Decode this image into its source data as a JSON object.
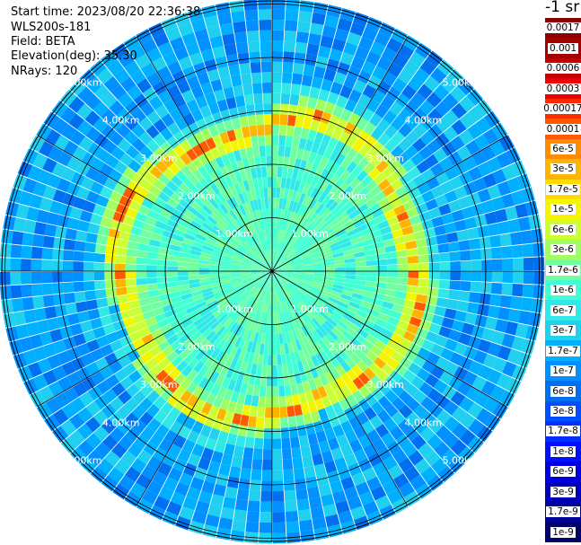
{
  "header": {
    "start_time": "Start time: 2023/08/20 22:36:38",
    "instrument": "WLS200s-181",
    "field": "Field: BETA",
    "elevation": "Elevation(deg): 35.30",
    "nrays": "NRays: 120"
  },
  "colorbar": {
    "title": "-1 sr",
    "labels": [
      "0.0017",
      "0.001",
      "0.0006",
      "0.0003",
      "0.00017",
      "0.0001",
      "6e-5",
      "3e-5",
      "1.7e-5",
      "1e-5",
      "6e-6",
      "3e-6",
      "1.7e-6",
      "1e-6",
      "6e-7",
      "3e-7",
      "1.7e-7",
      "1e-7",
      "6e-8",
      "3e-8",
      "1.7e-8",
      "1e-8",
      "6e-9",
      "3e-9",
      "1.7e-9",
      "1e-9"
    ],
    "colors": [
      "#8b0000",
      "#a50000",
      "#c80000",
      "#ee0000",
      "#ff2a00",
      "#ff5a00",
      "#ff8c00",
      "#ffb400",
      "#ffdc00",
      "#f5f500",
      "#ccff33",
      "#a0ff60",
      "#70ffa0",
      "#40ffd0",
      "#30e8e8",
      "#20d0f0",
      "#00b0ff",
      "#0090ff",
      "#0070f0",
      "#0050ff",
      "#0030ff",
      "#0010ff",
      "#0000e0",
      "#0000b8",
      "#00009a",
      "#00006a"
    ]
  },
  "chart_data": {
    "type": "heatmap",
    "projection": "polar (PPI scan)",
    "range_rings_km": [
      1,
      2,
      3,
      4,
      5
    ],
    "ring_labels": [
      "1.00km",
      "2.00km",
      "3.00km",
      "4.00km",
      "5.00km"
    ],
    "azimuth_lines_deg": [
      0,
      30,
      60,
      90,
      120,
      150,
      180,
      210,
      240,
      270,
      300,
      330
    ],
    "max_range_km": 5.1,
    "n_rays": 120,
    "annotation": "bright ring of high backscatter (~1e-5 to 1e-4 sr-1) at ~2.2-3.2 km range; background ~1e-7 to 1e-8"
  }
}
